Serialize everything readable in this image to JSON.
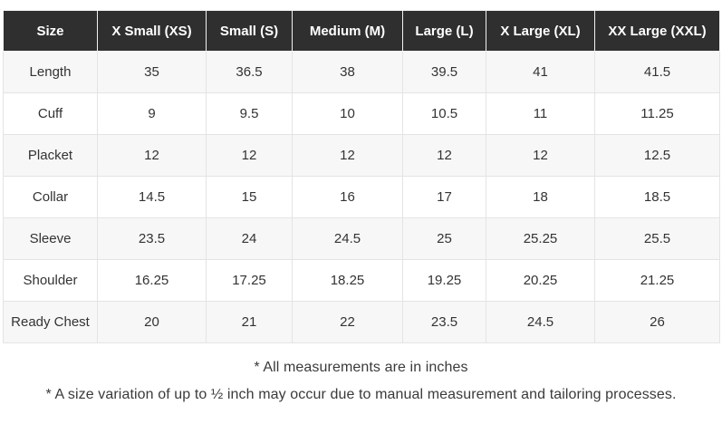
{
  "chart_data": {
    "type": "table",
    "columns": [
      "Size",
      "X Small (XS)",
      "Small (S)",
      "Medium (M)",
      "Large (L)",
      "X Large (XL)",
      "XX Large (XXL)"
    ],
    "rows": [
      {
        "label": "Length",
        "values": [
          "35",
          "36.5",
          "38",
          "39.5",
          "41",
          "41.5"
        ]
      },
      {
        "label": "Cuff",
        "values": [
          "9",
          "9.5",
          "10",
          "10.5",
          "11",
          "11.25"
        ]
      },
      {
        "label": "Placket",
        "values": [
          "12",
          "12",
          "12",
          "12",
          "12",
          "12.5"
        ]
      },
      {
        "label": "Collar",
        "values": [
          "14.5",
          "15",
          "16",
          "17",
          "18",
          "18.5"
        ]
      },
      {
        "label": "Sleeve",
        "values": [
          "23.5",
          "24",
          "24.5",
          "25",
          "25.25",
          "25.5"
        ]
      },
      {
        "label": "Shoulder",
        "values": [
          "16.25",
          "17.25",
          "18.25",
          "19.25",
          "20.25",
          "21.25"
        ]
      },
      {
        "label": "Ready Chest",
        "values": [
          "20",
          "21",
          "22",
          "23.5",
          "24.5",
          "26"
        ]
      }
    ],
    "footnotes": [
      "* All measurements are in inches",
      "* A size variation of up to ½ inch may occur due to manual measurement and tailoring processes."
    ]
  },
  "colors": {
    "header_bg": "#2f2f2f",
    "header_text": "#ffffff",
    "row_stripe_bg": "#f7f7f7",
    "row_plain_bg": "#ffffff",
    "border": "#e4e4e4",
    "body_text": "#333333"
  }
}
